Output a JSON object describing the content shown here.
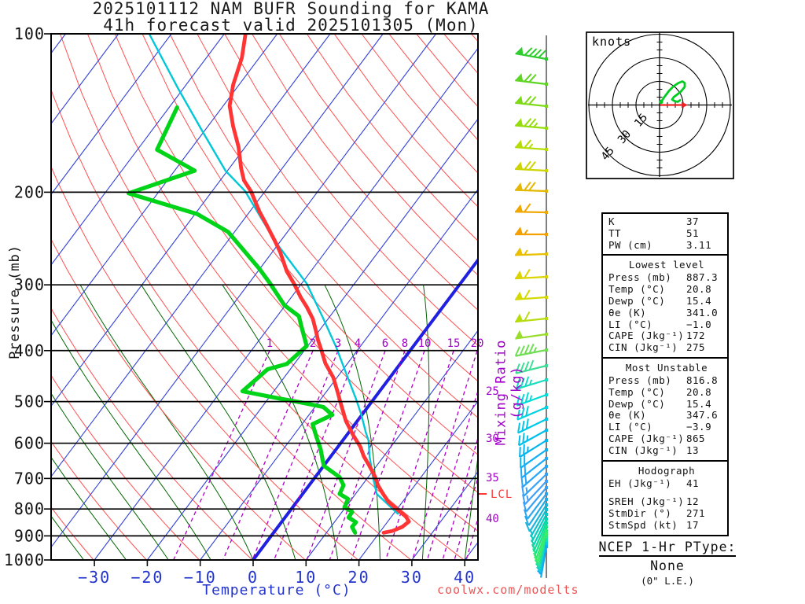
{
  "title": {
    "line1": "2025101112 NAM BUFR Sounding for KAMA",
    "line2": "41h forecast valid 2025101305 (Mon)"
  },
  "watermark": "coolwx.com/modelts",
  "colors": {
    "isotherm": "#3040d8",
    "isotherm_zero": "#2020e0",
    "dry_adiabat": "#ff5050",
    "moist_adiabat": "#006600",
    "mixing_ratio": "#b000c8",
    "mixing_label": "#a000c8",
    "pressure_text": "#111111",
    "temp_text": "#2233cc",
    "lcl": "#ff3434",
    "watermark": "#ee5555",
    "frame": "#000000",
    "barb_staff": "#555555"
  },
  "chart_data": {
    "type": "skewt_log_p_sounding",
    "station": "KAMA",
    "model": "NAM BUFR",
    "run": "2025101112",
    "forecast": "41h forecast valid 2025101305 (Mon)",
    "pressure_axis": {
      "label": "Pressure (mb)",
      "unit": "mb",
      "scale": "log",
      "ticks": [
        100,
        200,
        300,
        400,
        500,
        600,
        700,
        800,
        900,
        1000
      ]
    },
    "temperature_axis": {
      "label": "Temperature (°C)",
      "unit": "°C",
      "ticks": [
        -30,
        -20,
        -10,
        0,
        10,
        20,
        30,
        40
      ]
    },
    "mixing_ratio_axis": {
      "label": "Mixing Ratio (g/kg)",
      "inline_labels": [
        1,
        2,
        3,
        4,
        6,
        8,
        10,
        15,
        20
      ],
      "right_edge_labels": [
        25,
        30,
        35,
        40
      ]
    },
    "lcl": {
      "label": "LCL",
      "pressure_mb": 749
    },
    "background": {
      "isotherm_temps_c": [
        -120,
        -110,
        -100,
        -90,
        -80,
        -70,
        -60,
        -50,
        -40,
        -30,
        -20,
        -10,
        0,
        10,
        20,
        30,
        40
      ],
      "dry_adiabat_theta_k_start": 233,
      "dry_adiabat_theta_k_end": 463,
      "dry_adiabat_step_k": 10,
      "moist_adiabat_t1000_c": [
        -40,
        -32,
        -24,
        -16,
        -8,
        0,
        8,
        16,
        24,
        32,
        40
      ]
    },
    "series": [
      {
        "name": "temperature",
        "color": "#ff3434",
        "width": 4.8,
        "points_p_T": [
          [
            100,
            -76
          ],
          [
            111,
            -73.3
          ],
          [
            125,
            -71.1
          ],
          [
            137,
            -68.8
          ],
          [
            150,
            -65.2
          ],
          [
            164,
            -61.3
          ],
          [
            180,
            -57.8
          ],
          [
            190,
            -55.5
          ],
          [
            199,
            -52.7
          ],
          [
            218,
            -48.1
          ],
          [
            228,
            -45.6
          ],
          [
            248,
            -41.0
          ],
          [
            260,
            -38.5
          ],
          [
            283,
            -34.5
          ],
          [
            298,
            -31.5
          ],
          [
            317,
            -28.2
          ],
          [
            330,
            -25.8
          ],
          [
            348,
            -22.9
          ],
          [
            366,
            -20.7
          ],
          [
            382,
            -18.9
          ],
          [
            396,
            -17.2
          ],
          [
            423,
            -14.2
          ],
          [
            450,
            -10.7
          ],
          [
            482,
            -7.6
          ],
          [
            502,
            -5.8
          ],
          [
            544,
            -2.2
          ],
          [
            582,
            1.5
          ],
          [
            609,
            4.2
          ],
          [
            635,
            6.2
          ],
          [
            662,
            8.6
          ],
          [
            694,
            11.2
          ],
          [
            721,
            13.0
          ],
          [
            749,
            15.2
          ],
          [
            775,
            17.3
          ],
          [
            802,
            20.1
          ],
          [
            827,
            22.7
          ],
          [
            845,
            24.0
          ],
          [
            865,
            23.5
          ],
          [
            881,
            22.2
          ],
          [
            887.3,
            20.8
          ]
        ]
      },
      {
        "name": "dewpoint",
        "color": "#00d418",
        "width": 5.2,
        "points_p_T": [
          [
            138,
            -78.5
          ],
          [
            166,
            -76.3
          ],
          [
            182,
            -66.2
          ],
          [
            201,
            -75.5
          ],
          [
            220,
            -59.6
          ],
          [
            238,
            -51.2
          ],
          [
            280,
            -40.0
          ],
          [
            298,
            -36.0
          ],
          [
            328,
            -30.2
          ],
          [
            344,
            -25.9
          ],
          [
            358,
            -24.2
          ],
          [
            392,
            -20.2
          ],
          [
            424,
            -21.4
          ],
          [
            434,
            -24.3
          ],
          [
            478,
            -25.9
          ],
          [
            494,
            -17.6
          ],
          [
            502,
            -13.2
          ],
          [
            512,
            -8.4
          ],
          [
            530,
            -5.6
          ],
          [
            552,
            -8.0
          ],
          [
            582,
            -5.6
          ],
          [
            615,
            -3.0
          ],
          [
            662,
            0.0
          ],
          [
            696,
            4.6
          ],
          [
            721,
            6.5
          ],
          [
            749,
            7.0
          ],
          [
            766,
            9.3
          ],
          [
            794,
            9.8
          ],
          [
            810,
            11.9
          ],
          [
            830,
            12.0
          ],
          [
            848,
            14.1
          ],
          [
            865,
            14.0
          ],
          [
            887.3,
            15.4
          ]
        ]
      },
      {
        "name": "parcel",
        "color": "#00c8d8",
        "width": 2.4,
        "points_p_T": [
          [
            100,
            -94.2
          ],
          [
            127,
            -81.0
          ],
          [
            153,
            -70.4
          ],
          [
            182,
            -60.4
          ],
          [
            199,
            -53.8
          ],
          [
            248,
            -41.0
          ],
          [
            298,
            -29.1
          ],
          [
            346,
            -21.2
          ],
          [
            393,
            -14.6
          ],
          [
            437,
            -9.4
          ],
          [
            494,
            -3.4
          ],
          [
            530,
            -0.1
          ],
          [
            572,
            3.2
          ],
          [
            593,
            4.9
          ],
          [
            635,
            7.3
          ],
          [
            694,
            10.8
          ],
          [
            721,
            12.4
          ],
          [
            749,
            14.0
          ],
          [
            816.8,
            20.8
          ]
        ]
      }
    ],
    "wind_barbs": {
      "unit": "kt",
      "entry_format": [
        "y_px",
        "speed_kt",
        "tilt_deg",
        "color"
      ],
      "levels": [
        [
          75,
          90,
          10,
          "#2ecc2e"
        ],
        [
          107,
          70,
          7,
          "#5ed522"
        ],
        [
          135,
          70,
          6,
          "#7ed916"
        ],
        [
          163,
          75,
          5,
          "#96dd0c"
        ],
        [
          190,
          65,
          4,
          "#b4dd04"
        ],
        [
          217,
          70,
          3,
          "#cdd400"
        ],
        [
          243,
          70,
          2,
          "#e4b800"
        ],
        [
          270,
          60,
          1,
          "#f0a800"
        ],
        [
          298,
          55,
          0,
          "#f4a000"
        ],
        [
          323,
          55,
          -2,
          "#e8c000"
        ],
        [
          352,
          60,
          -3,
          "#dcd400"
        ],
        [
          378,
          60,
          -4,
          "#d4da00"
        ],
        [
          405,
          60,
          -6,
          "#b6dc0e"
        ],
        [
          425,
          50,
          -8,
          "#98dd2c"
        ],
        [
          445,
          45,
          -11,
          "#70dd54"
        ],
        [
          465,
          40,
          -14,
          "#3edd96"
        ],
        [
          483,
          35,
          -17,
          "#16ddc2"
        ],
        [
          502,
          35,
          -20,
          "#00dcd6"
        ],
        [
          518,
          30,
          -23,
          "#00d2e0"
        ],
        [
          533,
          30,
          -26,
          "#00c8e8"
        ],
        [
          547,
          25,
          -29,
          "#00c0ec"
        ],
        [
          560,
          25,
          -32,
          "#00b6f0"
        ],
        [
          572,
          20,
          -35,
          "#0eb0f2"
        ],
        [
          583,
          20,
          -38,
          "#1eaaf4"
        ],
        [
          593,
          20,
          -41,
          "#2aa6f6"
        ],
        [
          603,
          15,
          -44,
          "#36a2f8"
        ],
        [
          612,
          15,
          -47,
          "#40a0fa"
        ],
        [
          620,
          10,
          -50,
          "#38a0f6"
        ],
        [
          628,
          10,
          -53,
          "#2ea6ee"
        ],
        [
          635,
          10,
          -56,
          "#24ace6"
        ],
        [
          642,
          10,
          -58,
          "#1ab6da"
        ],
        [
          648,
          5,
          -60,
          "#10c0ce"
        ],
        [
          654,
          5,
          -62,
          "#08cac0"
        ],
        [
          660,
          5,
          -64,
          "#04d4b0"
        ],
        [
          665,
          5,
          -66,
          "#0cdc9c"
        ],
        [
          670,
          5,
          -68,
          "#1ce486"
        ],
        [
          675,
          5,
          -70,
          "#2cea72"
        ],
        [
          679,
          5,
          -72,
          "#3cee62"
        ],
        [
          683,
          5,
          -74,
          "#2ce882"
        ],
        [
          687,
          5,
          -76,
          "#1cdcaa"
        ],
        [
          691,
          5,
          -78,
          "#0cccdc"
        ],
        [
          695,
          5,
          -80,
          "#16aaf2"
        ]
      ]
    }
  },
  "hodograph": {
    "unit_label": "knots",
    "rings_kt": [
      15,
      30,
      45
    ],
    "trace_color": "#00cc22",
    "trace_uv_kt": [
      [
        1,
        2
      ],
      [
        3,
        5
      ],
      [
        6,
        9
      ],
      [
        9,
        12
      ],
      [
        12,
        14
      ],
      [
        14.5,
        15
      ],
      [
        16,
        14
      ],
      [
        16,
        11.5
      ],
      [
        13.5,
        8.5
      ],
      [
        11,
        6.5
      ],
      [
        9,
        5
      ],
      [
        8,
        3.5
      ],
      [
        9.5,
        2.5
      ],
      [
        11.5,
        2
      ],
      [
        13,
        3
      ]
    ],
    "storm_motion": {
      "dir_deg": 271,
      "speed_kt": 17,
      "arrow_color": "#ee2222"
    }
  },
  "stats": {
    "sections": [
      {
        "title": "",
        "rows": [
          [
            "K",
            "37"
          ],
          [
            "TT",
            "51"
          ],
          [
            "PW (cm)",
            "3.11"
          ]
        ]
      },
      {
        "title": "Lowest level",
        "rows": [
          [
            "Press (mb)",
            "887.3"
          ],
          [
            "Temp (°C)",
            "20.8"
          ],
          [
            "Dewp (°C)",
            "15.4"
          ],
          [
            "θe (K)",
            "341.0"
          ],
          [
            "LI (°C)",
            "−1.0"
          ],
          [
            "CAPE (Jkg⁻¹)",
            "172"
          ],
          [
            "CIN (Jkg⁻¹)",
            "275"
          ]
        ]
      },
      {
        "title": "Most Unstable",
        "rows": [
          [
            "Press (mb)",
            "816.8"
          ],
          [
            "Temp (°C)",
            "20.8"
          ],
          [
            "Dewp (°C)",
            "15.4"
          ],
          [
            "θe (K)",
            "347.6"
          ],
          [
            "LI (°C)",
            "−3.9"
          ],
          [
            "CAPE (Jkg⁻¹)",
            "865"
          ],
          [
            "CIN (Jkg⁻¹)",
            "13"
          ]
        ]
      },
      {
        "title": "Hodograph",
        "rows": [
          [
            "EH (Jkg⁻¹)",
            "41"
          ],
          [
            "SREH (Jkg⁻¹)",
            "12"
          ],
          [
            "StmDir (°)",
            "271"
          ],
          [
            "StmSpd (kt)",
            "17"
          ]
        ]
      }
    ]
  },
  "ptype": {
    "heading": "NCEP 1-Hr PType:",
    "value": "None",
    "note": "(0\" L.E.)"
  }
}
